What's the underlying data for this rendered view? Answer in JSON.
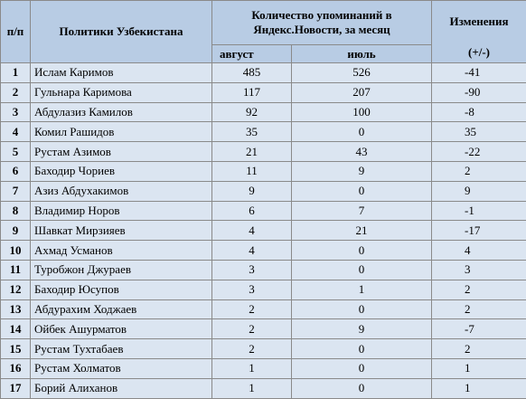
{
  "header": {
    "num": "п/п",
    "name": "Политики Узбекистана",
    "mentions": "Количество упоминаний в Яндекс.Новости, за месяц",
    "change_title": "Изменения",
    "change_unit": "(+/-)",
    "august": "август",
    "july": "июль"
  },
  "rows": [
    {
      "n": "1",
      "name": "Ислам Каримов",
      "aug": "485",
      "jul": "526",
      "chg": "-41"
    },
    {
      "n": "2",
      "name": "Гульнара Каримова",
      "aug": "117",
      "jul": "207",
      "chg": "-90"
    },
    {
      "n": "3",
      "name": "Абдулазиз Камилов",
      "aug": "92",
      "jul": "100",
      "chg": "-8"
    },
    {
      "n": "4",
      "name": "Комил Рашидов",
      "aug": "35",
      "jul": "0",
      "chg": "35"
    },
    {
      "n": "5",
      "name": "Рустам Азимов",
      "aug": "21",
      "jul": "43",
      "chg": "-22"
    },
    {
      "n": "6",
      "name": "Баходир Чориев",
      "aug": "11",
      "jul": "9",
      "chg": "2"
    },
    {
      "n": "7",
      "name": "Азиз Абдухакимов",
      "aug": "9",
      "jul": "0",
      "chg": "9"
    },
    {
      "n": "8",
      "name": "Владимир Норов",
      "aug": "6",
      "jul": "7",
      "chg": "-1"
    },
    {
      "n": "9",
      "name": "Шавкат Мирзияев",
      "aug": "4",
      "jul": "21",
      "chg": "-17"
    },
    {
      "n": "10",
      "name": "Ахмад Усманов",
      "aug": "4",
      "jul": "0",
      "chg": "4"
    },
    {
      "n": "11",
      "name": "Туробжон Джураев",
      "aug": "3",
      "jul": "0",
      "chg": "3"
    },
    {
      "n": "12",
      "name": "Баходир Юсупов",
      "aug": "3",
      "jul": "1",
      "chg": "2"
    },
    {
      "n": "13",
      "name": "Абдурахим Ходжаев",
      "aug": "2",
      "jul": "0",
      "chg": "2"
    },
    {
      "n": "14",
      "name": "Ойбек Ашурматов",
      "aug": "2",
      "jul": "9",
      "chg": "-7"
    },
    {
      "n": "15",
      "name": "Рустам Тухтабаев",
      "aug": "2",
      "jul": "0",
      "chg": "2"
    },
    {
      "n": "16",
      "name": "Рустам Холматов",
      "aug": "1",
      "jul": "0",
      "chg": "1"
    },
    {
      "n": "17",
      "name": "Борий Алиханов",
      "aug": "1",
      "jul": "0",
      "chg": "1"
    }
  ]
}
